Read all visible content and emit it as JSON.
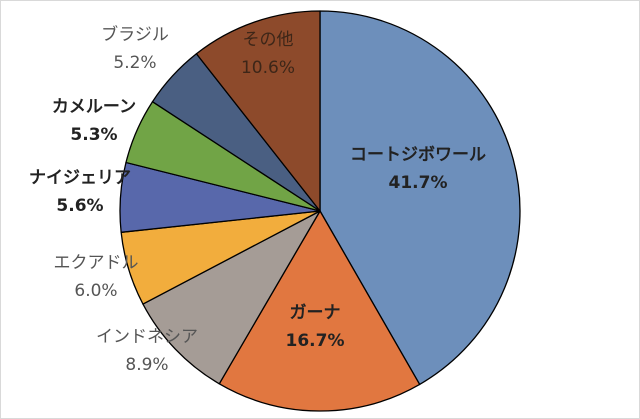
{
  "chart_data": {
    "type": "pie",
    "title": "",
    "slices": [
      {
        "label": "コートジボワール",
        "value": 41.7,
        "value_text": "41.7%",
        "color": "#6d8fbb",
        "bold": true
      },
      {
        "label": "ガーナ",
        "value": 16.7,
        "value_text": "16.7%",
        "color": "#e17740",
        "bold": true
      },
      {
        "label": "インドネシア",
        "value": 8.9,
        "value_text": "8.9%",
        "color": "#a59c96",
        "bold": false
      },
      {
        "label": "エクアドル",
        "value": 6.0,
        "value_text": "6.0%",
        "color": "#f2ad3d",
        "bold": false
      },
      {
        "label": "ナイジェリア",
        "value": 5.6,
        "value_text": "5.6%",
        "color": "#5868ab",
        "bold": true
      },
      {
        "label": "カメルーン",
        "value": 5.3,
        "value_text": "5.3%",
        "color": "#71a446",
        "bold": true
      },
      {
        "label": "ブラジル",
        "value": 5.2,
        "value_text": "5.2%",
        "color": "#4a5f82",
        "bold": false
      },
      {
        "label": "その他",
        "value": 10.6,
        "value_text": "10.6%",
        "color": "#8d4a2b",
        "bold": false
      }
    ],
    "start_angle": "12 o'clock",
    "direction": "clockwise",
    "legend": "none"
  }
}
